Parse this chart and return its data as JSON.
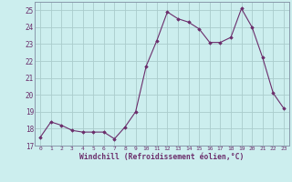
{
  "x": [
    0,
    1,
    2,
    3,
    4,
    5,
    6,
    7,
    8,
    9,
    10,
    11,
    12,
    13,
    14,
    15,
    16,
    17,
    18,
    19,
    20,
    21,
    22,
    23
  ],
  "y": [
    17.5,
    18.4,
    18.2,
    17.9,
    17.8,
    17.8,
    17.8,
    17.4,
    18.1,
    19.0,
    21.7,
    23.2,
    24.9,
    24.5,
    24.3,
    23.9,
    23.1,
    23.1,
    23.4,
    25.1,
    24.0,
    22.2,
    20.1,
    19.2
  ],
  "ylim": [
    17,
    25.5
  ],
  "yticks": [
    17,
    18,
    19,
    20,
    21,
    22,
    23,
    24,
    25
  ],
  "xlabel": "Windchill (Refroidissement éolien,°C)",
  "line_color": "#6b2d6b",
  "marker": "D",
  "marker_size": 1.8,
  "bg_color": "#cceeee",
  "grid_color": "#aacccc",
  "tick_label_color": "#6b2d6b",
  "xlabel_color": "#6b2d6b",
  "font_family": "monospace",
  "spine_color": "#8899aa"
}
